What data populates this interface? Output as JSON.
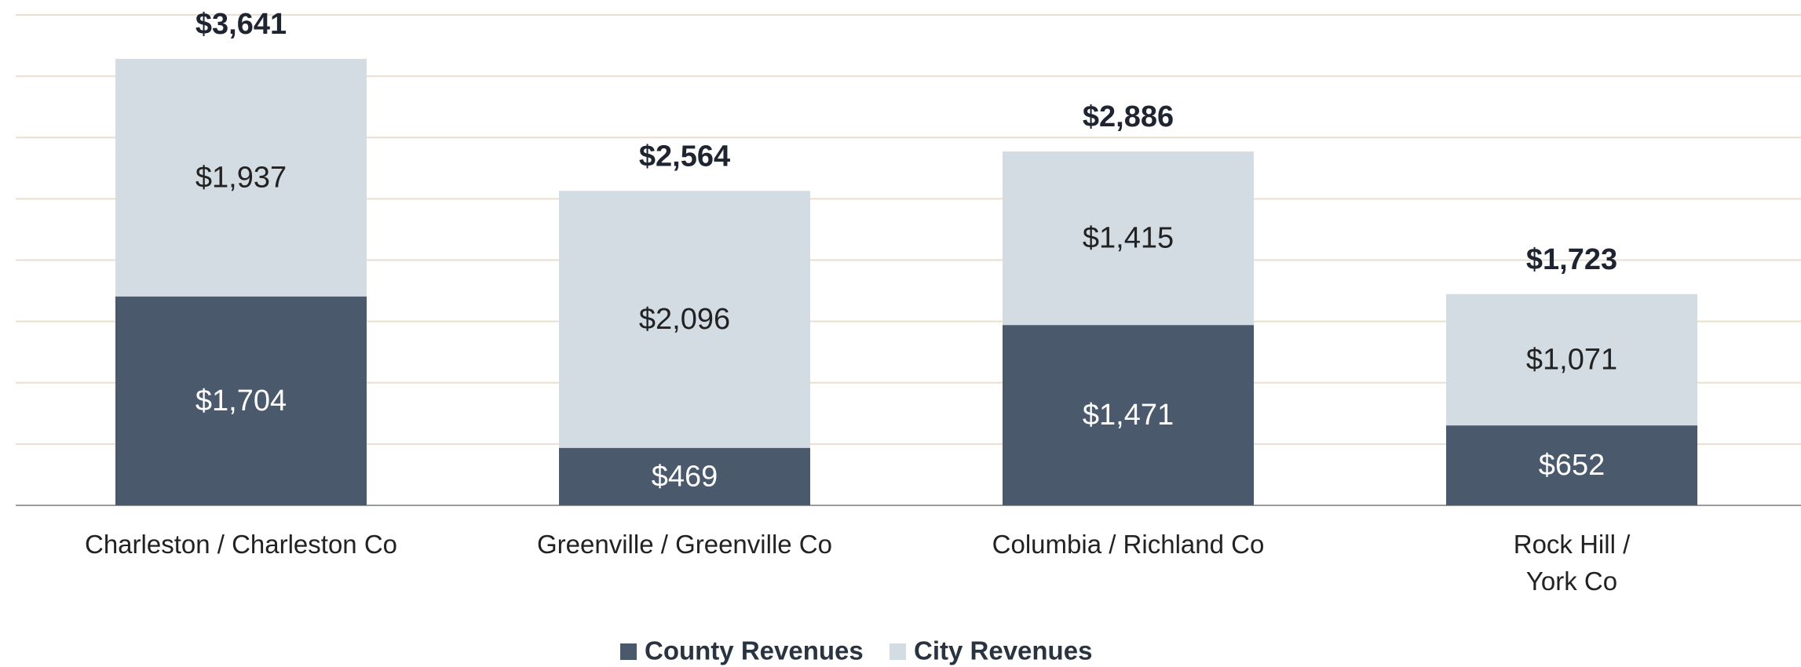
{
  "chart_data": {
    "type": "stacked_bar",
    "categories": [
      "Charleston / Charleston Co",
      "Greenville / Greenville Co",
      "Columbia / Richland Co",
      "Rock Hill /\nYork Co"
    ],
    "series": [
      {
        "name": "County Revenues",
        "color": "#4a596c",
        "values": [
          1704,
          469,
          1471,
          652
        ],
        "value_labels": [
          "$1,704",
          "$469",
          "$1,471",
          "$652"
        ]
      },
      {
        "name": "City Revenues",
        "color": "#d3dce2",
        "values": [
          1937,
          2096,
          1415,
          1071
        ],
        "value_labels": [
          "$1,937",
          "$2,096",
          "$1,415",
          "$1,071"
        ]
      }
    ],
    "total_labels": [
      "$3,641",
      "$2,564",
      "$2,886",
      "$1,723"
    ],
    "ylim": [
      0,
      4000
    ],
    "yticks": [
      0,
      500,
      1000,
      1500,
      2000,
      2500,
      3000,
      3500,
      4000
    ],
    "grid": true
  }
}
